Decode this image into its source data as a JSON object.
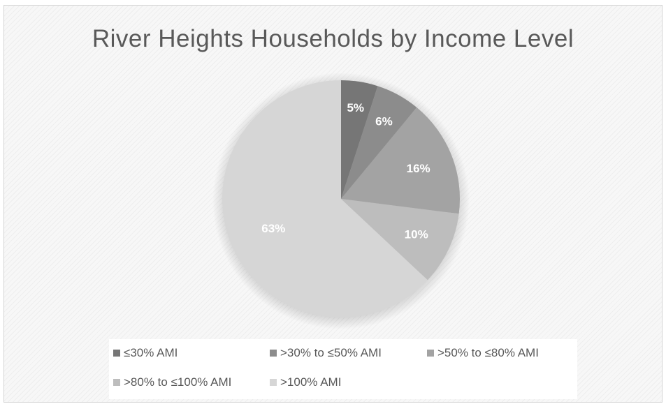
{
  "chart_data": {
    "type": "pie",
    "title": "River Heights Households by Income Level",
    "slices": [
      {
        "label": "≤30% AMI",
        "value": 5,
        "display": "5%",
        "color": "#767676"
      },
      {
        "label": ">30% to ≤50% AMI",
        "value": 6,
        "display": "6%",
        "color": "#8c8c8c"
      },
      {
        "label": ">50% to ≤80% AMI",
        "value": 16,
        "display": "16%",
        "color": "#a3a3a3"
      },
      {
        "label": ">80% to ≤100% AMI",
        "value": 10,
        "display": "10%",
        "color": "#bdbdbd"
      },
      {
        "label": ">100% AMI",
        "value": 63,
        "display": "63%",
        "color": "#d6d6d6"
      }
    ],
    "start_angle": "12 o'clock",
    "direction": "clockwise",
    "legend_position": "bottom"
  }
}
